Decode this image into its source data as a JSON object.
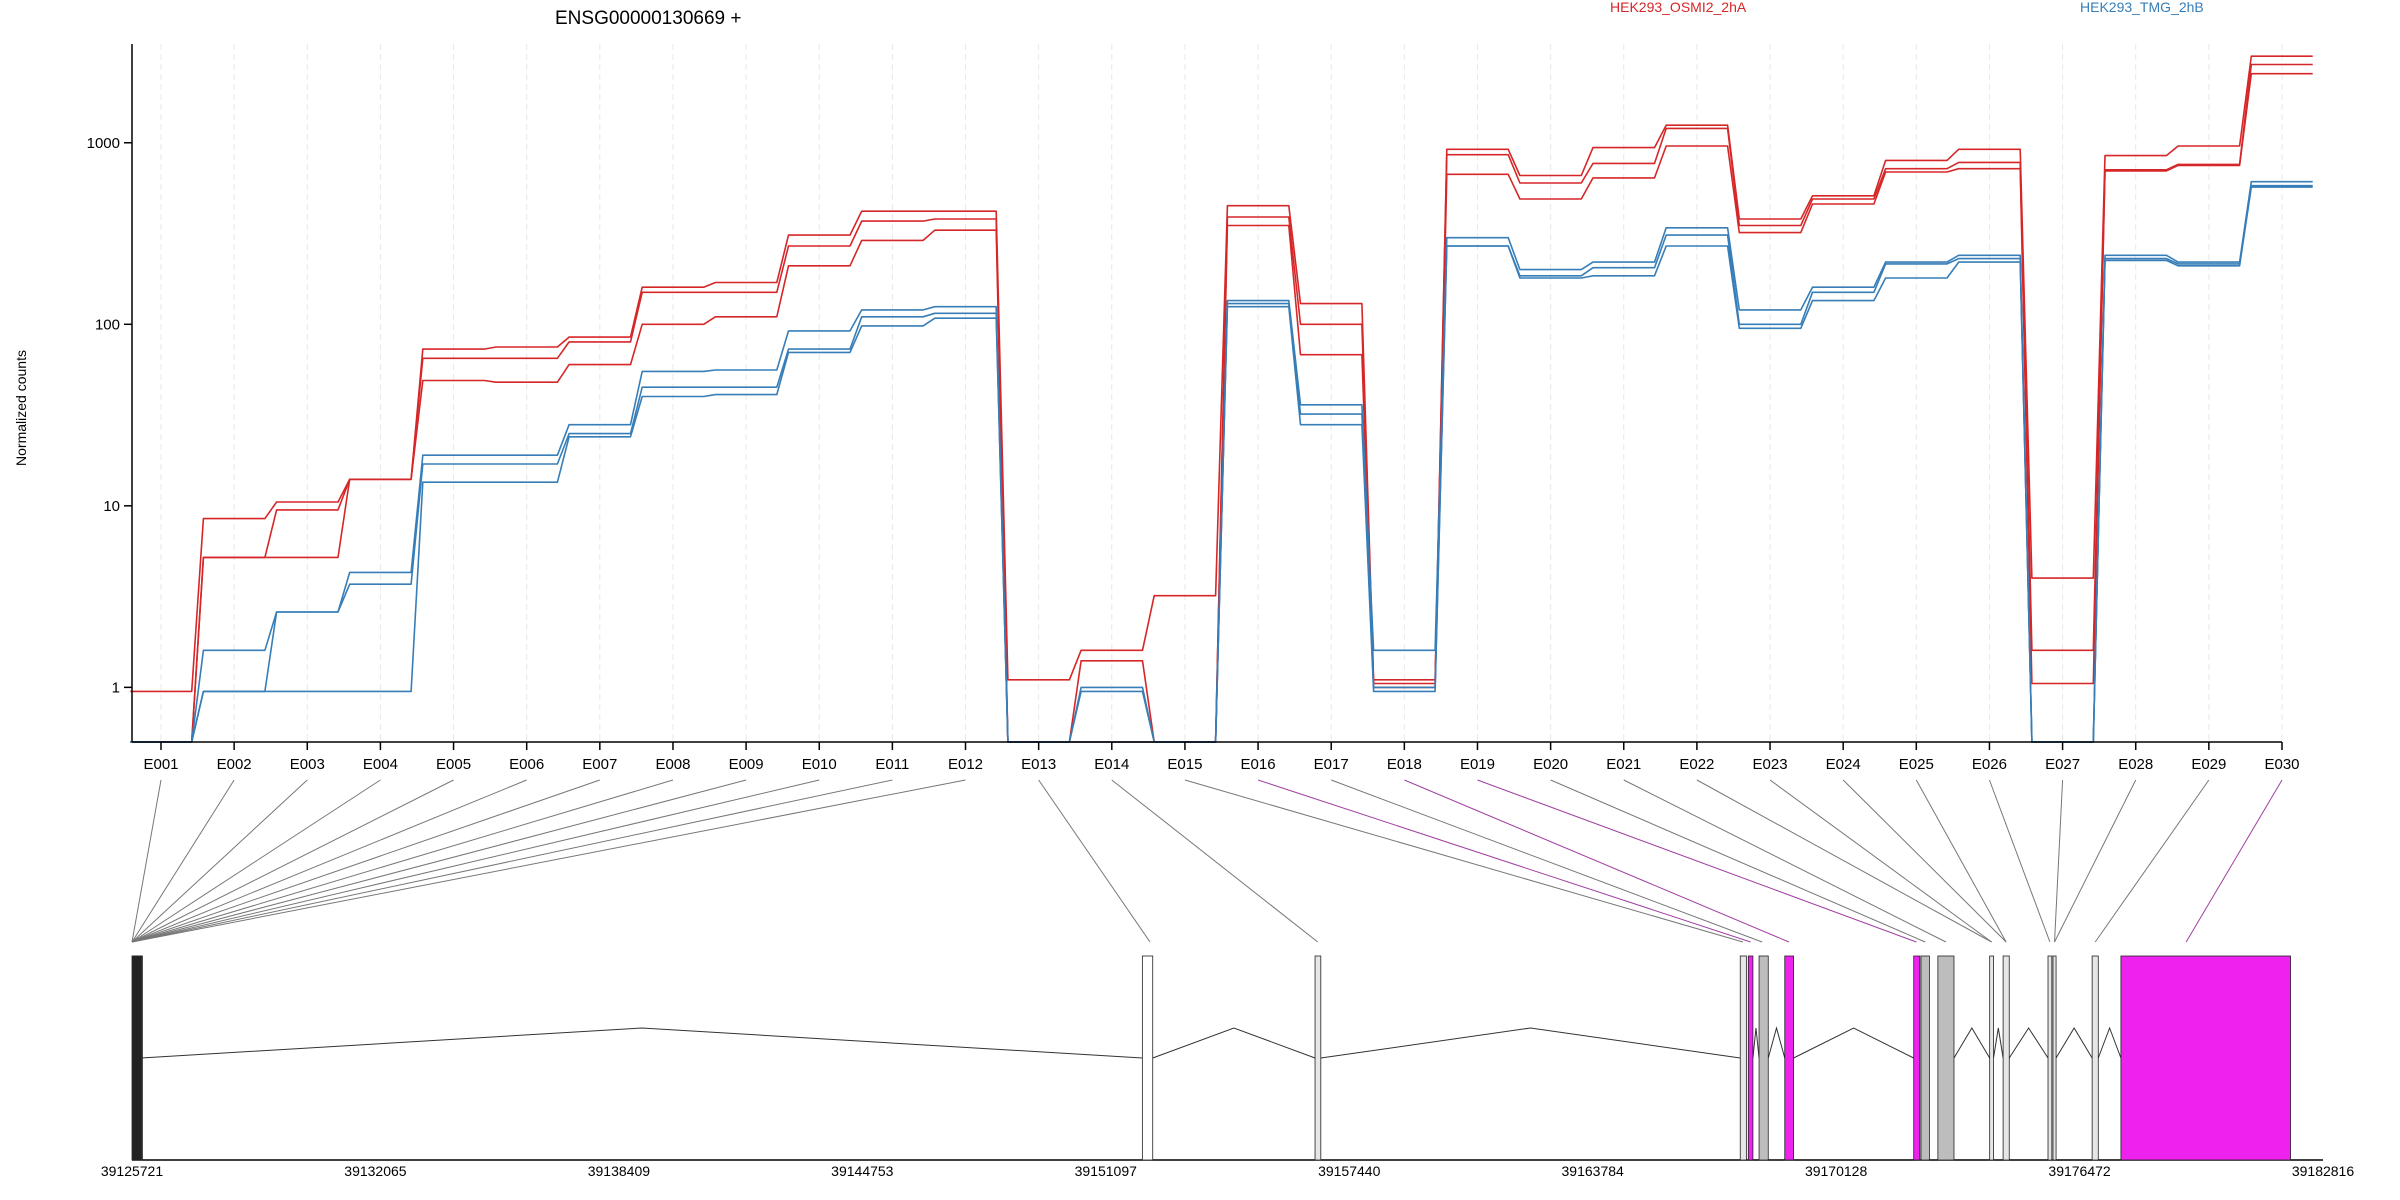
{
  "chart_data": {
    "type": "line",
    "title": "ENSG00000130669 +",
    "ylabel": "Normalized counts",
    "yscale": "log",
    "ylim": [
      0.5,
      3500
    ],
    "yticks": [
      {
        "v": 1,
        "label": "1"
      },
      {
        "v": 10,
        "label": "10"
      },
      {
        "v": 100,
        "label": "100"
      },
      {
        "v": 1000,
        "label": "1000"
      }
    ],
    "categories": [
      "E001",
      "E002",
      "E003",
      "E004",
      "E005",
      "E006",
      "E007",
      "E008",
      "E009",
      "E010",
      "E011",
      "E012",
      "E013",
      "E014",
      "E015",
      "E016",
      "E017",
      "E018",
      "E019",
      "E020",
      "E021",
      "E022",
      "E023",
      "E024",
      "E025",
      "E026",
      "E027",
      "E028",
      "E029",
      "E030"
    ],
    "legend": [
      {
        "name": "HEK293_OSMI2_2hA",
        "color": "#d62728"
      },
      {
        "name": "HEK293_TMG_2hB",
        "color": "#377eb8"
      }
    ],
    "series": [
      {
        "group": "HEK293_OSMI2_2hA",
        "color": "#d62728",
        "values": [
          0.95,
          8.5,
          10.5,
          14,
          73,
          75,
          85,
          160,
          170,
          310,
          420,
          420,
          1.1,
          1.6,
          3.2,
          450,
          130,
          1.1,
          920,
          660,
          940,
          1250,
          380,
          510,
          800,
          920,
          4.0,
          850,
          960,
          3000
        ]
      },
      {
        "group": "HEK293_OSMI2_2hA",
        "color": "#d62728",
        "values": [
          0.5,
          5.2,
          9.5,
          14,
          65,
          65,
          80,
          150,
          150,
          270,
          370,
          380,
          0.5,
          1.4,
          0.5,
          390,
          100,
          1.05,
          860,
          600,
          770,
          1200,
          350,
          490,
          720,
          780,
          1.6,
          710,
          760,
          2700
        ]
      },
      {
        "group": "HEK293_OSMI2_2hA",
        "color": "#d62728",
        "values": [
          0.5,
          5.2,
          5.2,
          14,
          49,
          48,
          60,
          100,
          110,
          210,
          290,
          330,
          0.5,
          0.5,
          0.5,
          350,
          68,
          1.0,
          670,
          490,
          640,
          960,
          320,
          460,
          690,
          720,
          1.05,
          700,
          750,
          2400
        ]
      },
      {
        "group": "HEK293_TMG_2hB",
        "color": "#377eb8",
        "values": [
          0.5,
          1.6,
          2.6,
          4.3,
          19,
          19,
          28,
          55,
          56,
          92,
          120,
          125,
          0.5,
          1.0,
          0.5,
          135,
          36,
          1.6,
          300,
          200,
          220,
          340,
          120,
          160,
          220,
          240,
          0.5,
          240,
          220,
          610
        ]
      },
      {
        "group": "HEK293_TMG_2hB",
        "color": "#377eb8",
        "values": [
          0.5,
          0.95,
          2.6,
          3.7,
          17,
          17,
          25,
          45,
          45,
          73,
          110,
          115,
          0.5,
          0.95,
          0.5,
          130,
          32,
          1.0,
          270,
          185,
          205,
          310,
          100,
          150,
          215,
          230,
          0.5,
          230,
          215,
          580
        ]
      },
      {
        "group": "HEK293_TMG_2hB",
        "color": "#377eb8",
        "values": [
          0.5,
          0.95,
          0.95,
          0.95,
          13.5,
          13.5,
          24,
          40,
          41,
          70,
          98,
          108,
          0.5,
          0.5,
          0.5,
          125,
          28,
          0.95,
          270,
          180,
          185,
          270,
          95,
          135,
          180,
          220,
          0.5,
          225,
          210,
          570
        ]
      }
    ],
    "gene_model": {
      "coord_ticks": [
        "39125721",
        "39132065",
        "39138409",
        "39144753",
        "39151097",
        "39157440",
        "39163784",
        "39170128",
        "39176472",
        "39182816"
      ],
      "coord_range": [
        39125721,
        39182816
      ],
      "exons": [
        {
          "start": 39125721,
          "end": 39125740,
          "fill": "#2b2b2b"
        },
        {
          "start": 39125740,
          "end": 39125760,
          "fill": "#2b2b2b"
        },
        {
          "start": 39125760,
          "end": 39125780,
          "fill": "#2b2b2b"
        },
        {
          "start": 39125780,
          "end": 39125800,
          "fill": "#2b2b2b"
        },
        {
          "start": 39125800,
          "end": 39125820,
          "fill": "#2b2b2b"
        },
        {
          "start": 39125820,
          "end": 39125840,
          "fill": "#2b2b2b"
        },
        {
          "start": 39125840,
          "end": 39125860,
          "fill": "#2b2b2b"
        },
        {
          "start": 39125860,
          "end": 39125880,
          "fill": "#2b2b2b"
        },
        {
          "start": 39125880,
          "end": 39125900,
          "fill": "#2b2b2b"
        },
        {
          "start": 39125900,
          "end": 39125920,
          "fill": "#2b2b2b"
        },
        {
          "start": 39125920,
          "end": 39125940,
          "fill": "#2b2b2b"
        },
        {
          "start": 39125940,
          "end": 39125960,
          "fill": "#2b2b2b"
        },
        {
          "start": 39152050,
          "end": 39152320,
          "fill": "#ffffff"
        },
        {
          "start": 39156550,
          "end": 39156700,
          "fill": "#e6e6e6"
        },
        {
          "start": 39167630,
          "end": 39167790,
          "fill": "#e6e6e6"
        },
        {
          "start": 39167840,
          "end": 39167960,
          "fill": "#ee22ee"
        },
        {
          "start": 39168120,
          "end": 39168360,
          "fill": "#bdbdbd"
        },
        {
          "start": 39168790,
          "end": 39169020,
          "fill": "#ee22ee"
        },
        {
          "start": 39172150,
          "end": 39172310,
          "fill": "#ee22ee"
        },
        {
          "start": 39172340,
          "end": 39172560,
          "fill": "#bdbdbd"
        },
        {
          "start": 39172780,
          "end": 39173200,
          "fill": "#bdbdbd"
        },
        {
          "start": 39174130,
          "end": 39174230,
          "fill": "#e6e6e6"
        },
        {
          "start": 39174480,
          "end": 39174640,
          "fill": "#e6e6e6"
        },
        {
          "start": 39175650,
          "end": 39175750,
          "fill": "#e6e6e6"
        },
        {
          "start": 39175780,
          "end": 39175860,
          "fill": "#e6e6e6"
        },
        {
          "start": 39176800,
          "end": 39176960,
          "fill": "#e6e6e6"
        },
        {
          "start": 39177550,
          "end": 39181970,
          "fill": "#ee22ee"
        },
        {
          "start": 39182816,
          "end": 39182816,
          "fill": "#ee22ee"
        }
      ],
      "exon_links": [
        {
          "coord": 39125721,
          "color": "#777777"
        },
        {
          "coord": 39125721,
          "color": "#777777"
        },
        {
          "coord": 39125721,
          "color": "#777777"
        },
        {
          "coord": 39125721,
          "color": "#777777"
        },
        {
          "coord": 39125721,
          "color": "#777777"
        },
        {
          "coord": 39125721,
          "color": "#777777"
        },
        {
          "coord": 39125721,
          "color": "#777777"
        },
        {
          "coord": 39125721,
          "color": "#777777"
        },
        {
          "coord": 39125721,
          "color": "#777777"
        },
        {
          "coord": 39125721,
          "color": "#777777"
        },
        {
          "coord": 39125721,
          "color": "#777777"
        },
        {
          "coord": 39125721,
          "color": "#777777"
        },
        {
          "coord": 39152250,
          "color": "#777777"
        },
        {
          "coord": 39156620,
          "color": "#777777"
        },
        {
          "coord": 39167700,
          "color": "#777777"
        },
        {
          "coord": 39167900,
          "color": "#a040a0"
        },
        {
          "coord": 39168200,
          "color": "#777777"
        },
        {
          "coord": 39168900,
          "color": "#a040a0"
        },
        {
          "coord": 39172220,
          "color": "#a040a0"
        },
        {
          "coord": 39172450,
          "color": "#777777"
        },
        {
          "coord": 39172990,
          "color": "#777777"
        },
        {
          "coord": 39174180,
          "color": "#777777"
        },
        {
          "coord": 39174180,
          "color": "#777777"
        },
        {
          "coord": 39174560,
          "color": "#777777"
        },
        {
          "coord": 39174560,
          "color": "#777777"
        },
        {
          "coord": 39175700,
          "color": "#777777"
        },
        {
          "coord": 39175820,
          "color": "#777777"
        },
        {
          "coord": 39175820,
          "color": "#777777"
        },
        {
          "coord": 39176880,
          "color": "#777777"
        },
        {
          "coord": 39179250,
          "color": "#a040a0"
        }
      ]
    }
  }
}
